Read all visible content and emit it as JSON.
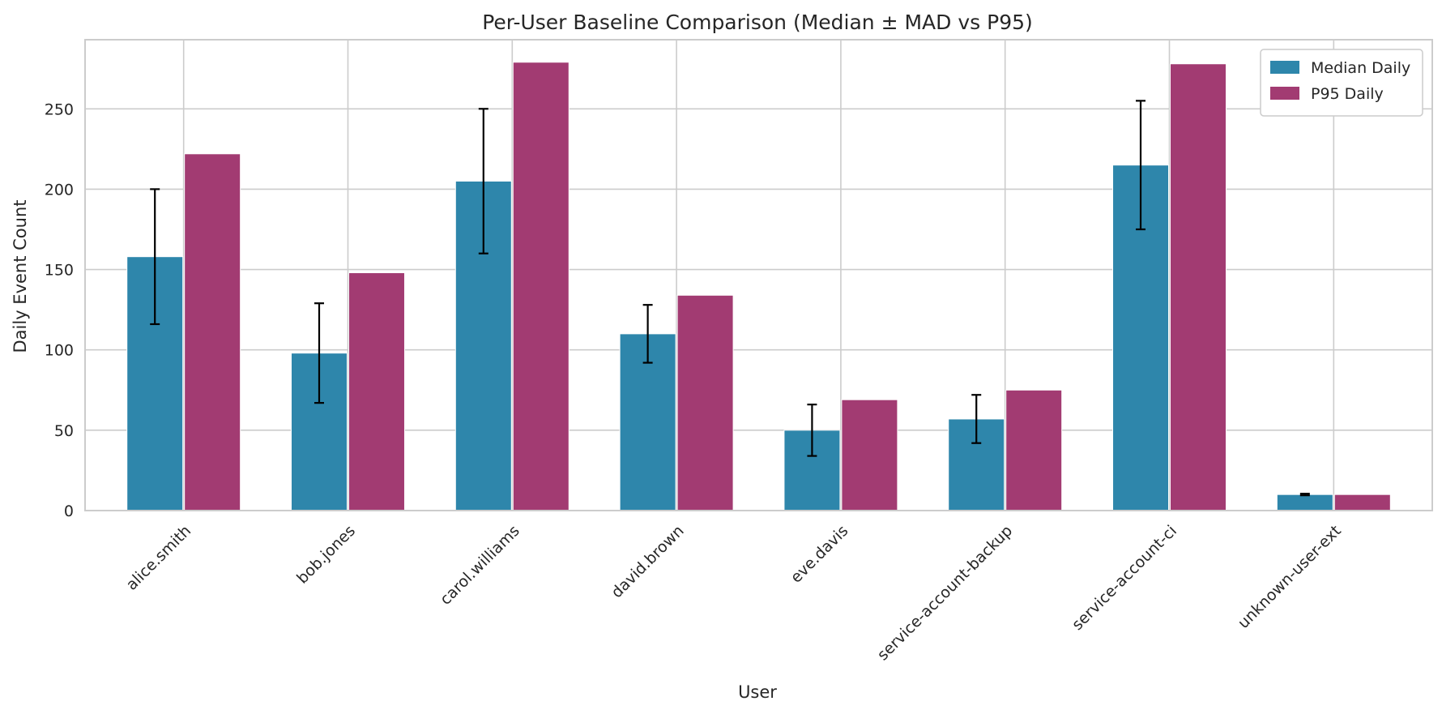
{
  "chart_data": {
    "type": "bar",
    "title": "Per-User Baseline Comparison (Median ± MAD vs P95)",
    "xlabel": "User",
    "ylabel": "Daily Event Count",
    "ylim": [
      0,
      293
    ],
    "yticks": [
      0,
      50,
      100,
      150,
      200,
      250
    ],
    "grid": true,
    "legend_position": "top-right",
    "categories": [
      "alice.smith",
      "bob.jones",
      "carol.williams",
      "david.brown",
      "eve.davis",
      "service-account-backup",
      "service-account-ci",
      "unknown-user-ext"
    ],
    "series": [
      {
        "name": "Median Daily",
        "color": "#2e86ab",
        "values": [
          158,
          98,
          205,
          110,
          50,
          57,
          215,
          10
        ],
        "error": [
          42,
          31,
          45,
          18,
          16,
          15,
          40,
          0.5
        ]
      },
      {
        "name": "P95 Daily",
        "color": "#a23b72",
        "values": [
          222,
          148,
          279,
          134,
          69,
          75,
          278,
          10
        ]
      }
    ]
  }
}
